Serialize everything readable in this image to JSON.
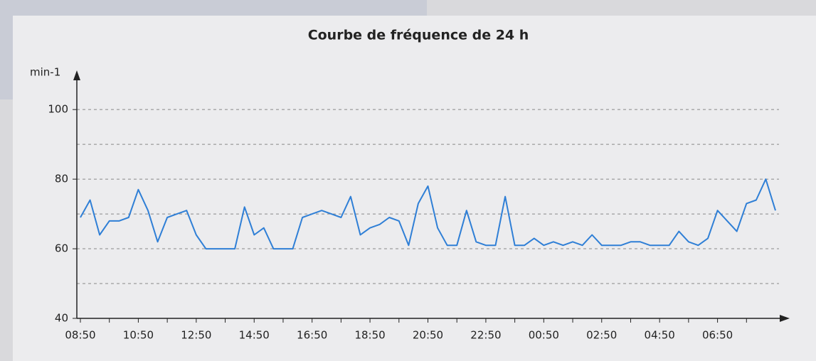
{
  "chart_data": {
    "type": "line",
    "title": "Courbe de fréquence de 24 h",
    "y_label": "min-1",
    "categories": [
      "08:50",
      null,
      null,
      null,
      null,
      null,
      "10:50",
      null,
      null,
      null,
      null,
      null,
      "12:50",
      null,
      null,
      null,
      null,
      null,
      "14:50",
      null,
      null,
      null,
      null,
      null,
      "16:50",
      null,
      null,
      null,
      null,
      null,
      "18:50",
      null,
      null,
      null,
      null,
      null,
      "20:50",
      null,
      null,
      null,
      null,
      null,
      "22:50",
      null,
      null,
      null,
      null,
      null,
      "00:50",
      null,
      null,
      null,
      null,
      null,
      "02:50",
      null,
      null,
      null,
      null,
      null,
      "04:50",
      null,
      null,
      null,
      null,
      null,
      "06:50",
      null,
      null,
      null,
      null,
      null,
      null
    ],
    "values": [
      69,
      74,
      64,
      68,
      68,
      69,
      77,
      71,
      62,
      69,
      70,
      71,
      64,
      60,
      60,
      60,
      60,
      72,
      64,
      66,
      60,
      60,
      60,
      69,
      70,
      71,
      70,
      69,
      75,
      64,
      66,
      67,
      69,
      68,
      61,
      73,
      78,
      66,
      61,
      61,
      71,
      62,
      61,
      61,
      75,
      61,
      61,
      63,
      61,
      62,
      61,
      62,
      61,
      64,
      61,
      61,
      61,
      62,
      62,
      61,
      61,
      61,
      65,
      62,
      61,
      63,
      71,
      68,
      65,
      73,
      74,
      80,
      71
    ],
    "color": "#2f7fd6",
    "ylim": [
      40,
      108
    ],
    "yticks": [
      40,
      60,
      80,
      100
    ],
    "ygrid": [
      50,
      60,
      70,
      80,
      90,
      100
    ],
    "grid": true
  }
}
